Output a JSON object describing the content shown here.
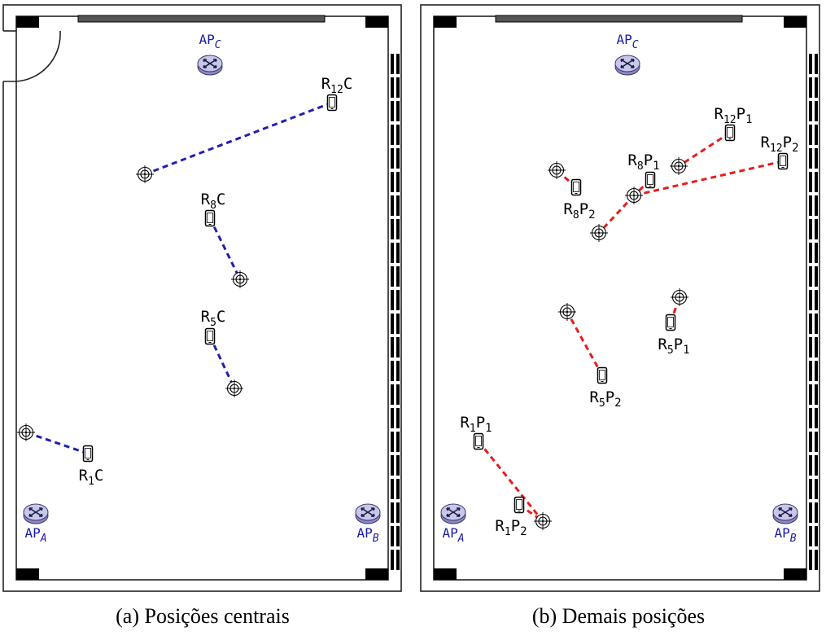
{
  "colors": {
    "line_central": "#1f1fb0",
    "line_other": "#e81c1c",
    "ap_fill": "#c9c6ec",
    "ap_stroke": "#3a3a6a",
    "ap_label": "#1a1aa8",
    "wall": "#222222"
  },
  "icons": {
    "access_point": "router-icon",
    "receiver": "smartphone-icon",
    "target": "crosshair-target-icon"
  },
  "panels": [
    {
      "id": "a",
      "caption": "(a) Posições centrais",
      "line_color_key": "line_central",
      "access_points": [
        {
          "name": "AP",
          "sub": "C",
          "pos": "top"
        },
        {
          "name": "AP",
          "sub": "A",
          "pos": "bottom-left"
        },
        {
          "name": "AP",
          "sub": "B",
          "pos": "bottom-right"
        }
      ],
      "receivers": [
        {
          "base": "R",
          "idx": "12",
          "suffix": "C",
          "suffix_sub": ""
        },
        {
          "base": "R",
          "idx": "8",
          "suffix": "C",
          "suffix_sub": ""
        },
        {
          "base": "R",
          "idx": "5",
          "suffix": "C",
          "suffix_sub": ""
        },
        {
          "base": "R",
          "idx": "1",
          "suffix": "C",
          "suffix_sub": ""
        }
      ]
    },
    {
      "id": "b",
      "caption": "(b) Demais posições",
      "line_color_key": "line_other",
      "access_points": [
        {
          "name": "AP",
          "sub": "C",
          "pos": "top"
        },
        {
          "name": "AP",
          "sub": "A",
          "pos": "bottom-left"
        },
        {
          "name": "AP",
          "sub": "B",
          "pos": "bottom-right"
        }
      ],
      "receivers": [
        {
          "base": "R",
          "idx": "12",
          "suffix": "P",
          "suffix_sub": "1"
        },
        {
          "base": "R",
          "idx": "12",
          "suffix": "P",
          "suffix_sub": "2"
        },
        {
          "base": "R",
          "idx": "8",
          "suffix": "P",
          "suffix_sub": "1"
        },
        {
          "base": "R",
          "idx": "8",
          "suffix": "P",
          "suffix_sub": "2"
        },
        {
          "base": "R",
          "idx": "5",
          "suffix": "P",
          "suffix_sub": "1"
        },
        {
          "base": "R",
          "idx": "5",
          "suffix": "P",
          "suffix_sub": "2"
        },
        {
          "base": "R",
          "idx": "1",
          "suffix": "P",
          "suffix_sub": "1"
        },
        {
          "base": "R",
          "idx": "1",
          "suffix": "P",
          "suffix_sub": "2"
        }
      ]
    }
  ]
}
